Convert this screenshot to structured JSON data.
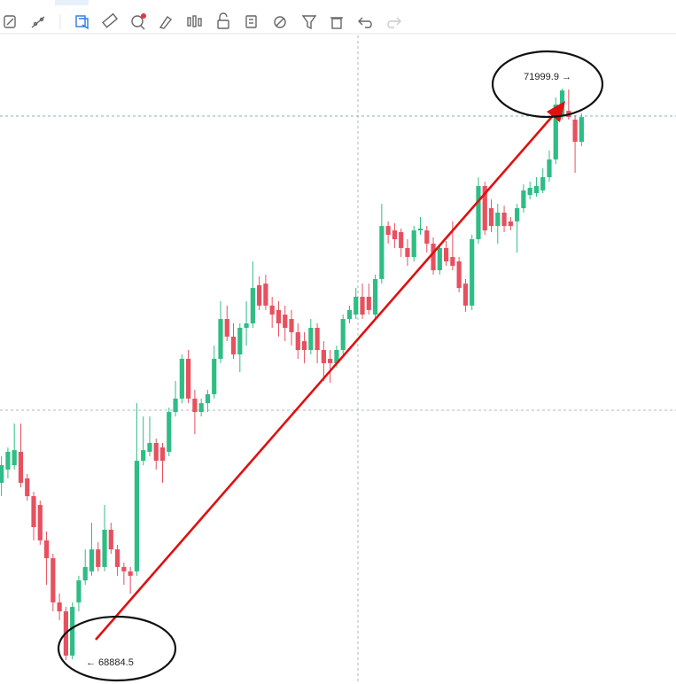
{
  "chart_data": {
    "type": "candlestick",
    "categories": [
      null,
      null,
      null,
      null,
      null,
      null,
      null,
      null,
      null,
      null,
      null,
      null,
      null,
      null,
      null,
      null,
      null,
      null,
      null,
      null,
      null,
      null,
      null,
      null,
      null,
      null,
      null,
      null,
      null,
      null,
      null,
      null,
      null,
      null,
      null,
      null,
      null,
      null,
      null,
      null,
      null,
      null,
      null,
      null,
      null,
      null,
      null,
      null,
      null,
      null,
      null,
      null,
      null,
      null,
      null,
      null,
      null,
      null,
      null,
      null,
      null,
      null,
      null,
      null,
      null,
      null,
      null,
      null,
      null,
      null,
      null,
      null,
      null,
      null,
      null,
      null,
      null,
      null,
      null,
      null,
      null,
      null,
      null,
      null,
      null,
      null,
      null,
      null,
      null,
      null,
      null
    ],
    "open": [
      69851,
      69923,
      69947,
      70020,
      69875,
      69778,
      69730,
      69537,
      69440,
      69199,
      69150,
      68909,
      69199,
      69319,
      69368,
      69488,
      69392,
      69595,
      69488,
      69392,
      69368,
      69368,
      69971,
      70020,
      70068,
      70044,
      70020,
      70237,
      70310,
      70527,
      70310,
      70237,
      70285,
      70334,
      70527,
      70744,
      70648,
      70551,
      70696,
      70720,
      70928,
      70937,
      70817,
      70793,
      70768,
      70744,
      70672,
      70623,
      70575,
      70696,
      70575,
      70527,
      70503,
      70575,
      70744,
      70768,
      70865,
      70865,
      70768,
      70962,
      71251,
      71227,
      71218,
      71131,
      71082,
      71227,
      71227,
      71155,
      71010,
      71131,
      71082,
      71058,
      70937,
      70817,
      71179,
      71469,
      71348,
      71251,
      71324,
      71276,
      71276,
      71348,
      71420,
      71430,
      71445,
      71517,
      71614,
      71855,
      71879,
      71831,
      71710
    ],
    "high": [
      69996,
      70044,
      70174,
      70174,
      69899,
      69802,
      69754,
      69585,
      69464,
      69247,
      69174,
      69199,
      69344,
      69488,
      69633,
      69527,
      69730,
      69633,
      69513,
      69416,
      69392,
      70285,
      70213,
      70213,
      70092,
      70068,
      70261,
      70406,
      70551,
      70575,
      70358,
      70310,
      70358,
      70599,
      70841,
      70817,
      70720,
      70720,
      70841,
      71058,
      70976,
      70986,
      70865,
      70841,
      70817,
      70793,
      70720,
      70672,
      70744,
      70720,
      70623,
      70575,
      70599,
      70768,
      70817,
      70913,
      70937,
      70937,
      70986,
      71372,
      71276,
      71266,
      71237,
      71179,
      71251,
      71300,
      71251,
      71189,
      71155,
      71169,
      71276,
      71082,
      70962,
      71203,
      71517,
      71493,
      71396,
      71372,
      71362,
      71300,
      71372,
      71478,
      71493,
      71517,
      71565,
      71662,
      71952,
      71999.9,
      71995,
      71855,
      71865
    ],
    "low": [
      69778,
      69875,
      69923,
      69826,
      69754,
      69537,
      69513,
      69295,
      69150,
      69102,
      68884.5,
      68889,
      69150,
      69295,
      69344,
      69368,
      69368,
      69464,
      69344,
      69295,
      69247,
      69344,
      69947,
      69996,
      69923,
      69851,
      69996,
      70213,
      70285,
      70285,
      70116,
      70213,
      70237,
      70310,
      70503,
      70623,
      70527,
      70454,
      70599,
      70696,
      70793,
      70793,
      70696,
      70648,
      70623,
      70599,
      70527,
      70503,
      70551,
      70503,
      70406,
      70396,
      70479,
      70551,
      70720,
      70744,
      70744,
      70768,
      70744,
      70937,
      71155,
      71131,
      71082,
      71034,
      71058,
      71203,
      71106,
      70986,
      70986,
      71034,
      71010,
      70889,
      70783,
      70793,
      71155,
      71203,
      71218,
      71155,
      71218,
      71227,
      71106,
      71324,
      71396,
      71411,
      71430,
      71493,
      71589,
      71831,
      71831,
      71541,
      71686
    ],
    "close": [
      69947,
      70020,
      70029,
      69851,
      69778,
      69609,
      69537,
      69440,
      69199,
      69150,
      68909,
      69174,
      69319,
      69392,
      69488,
      69392,
      69595,
      69488,
      69392,
      69368,
      69344,
      69971,
      70029,
      70068,
      69971,
      69971,
      70237,
      70310,
      70527,
      70310,
      70237,
      70285,
      70334,
      70527,
      70744,
      70648,
      70551,
      70696,
      70720,
      70913,
      70817,
      70817,
      70768,
      70720,
      70696,
      70672,
      70575,
      70575,
      70696,
      70575,
      70503,
      70503,
      70575,
      70744,
      70793,
      70865,
      70768,
      70793,
      70962,
      71251,
      71203,
      71179,
      71131,
      71082,
      71227,
      71237,
      71155,
      71010,
      71131,
      71058,
      71034,
      70913,
      70817,
      71179,
      71469,
      71227,
      71251,
      71324,
      71251,
      71251,
      71348,
      71445,
      71459,
      71469,
      71517,
      71614,
      71913,
      71990,
      71845,
      71710,
      71845
    ],
    "up_color": "#2ebd85",
    "down_color": "#e8505f",
    "ylim": [
      68754,
      72290
    ],
    "max_marker": {
      "value": 71999.9,
      "label": "71999.9 →"
    },
    "min_marker": {
      "value": 68884.5,
      "label": "← 68884.5"
    }
  }
}
